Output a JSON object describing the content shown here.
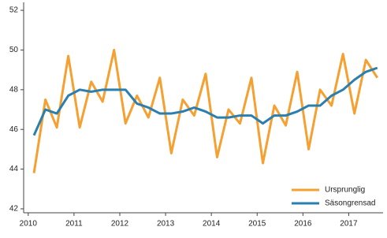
{
  "chart_data": {
    "type": "line",
    "x": [
      2010.125,
      2010.375,
      2010.625,
      2010.875,
      2011.125,
      2011.375,
      2011.625,
      2011.875,
      2012.125,
      2012.375,
      2012.625,
      2012.875,
      2013.125,
      2013.375,
      2013.625,
      2013.875,
      2014.125,
      2014.375,
      2014.625,
      2014.875,
      2015.125,
      2015.375,
      2015.625,
      2015.875,
      2016.125,
      2016.375,
      2016.625,
      2016.875,
      2017.125,
      2017.375,
      2017.625
    ],
    "series": [
      {
        "name": "Ursprunglig",
        "color": "#f5a031",
        "values": [
          43.8,
          47.5,
          46.1,
          49.7,
          46.1,
          48.4,
          47.4,
          50.0,
          46.3,
          47.7,
          46.6,
          48.6,
          44.8,
          47.5,
          46.7,
          48.8,
          44.6,
          47.0,
          46.3,
          48.6,
          44.3,
          47.2,
          46.2,
          48.9,
          45.0,
          48.0,
          47.2,
          49.8,
          46.8,
          49.5,
          48.6
        ]
      },
      {
        "name": "Säsongrensad",
        "color": "#2a7fae",
        "values": [
          45.7,
          47.0,
          46.8,
          47.7,
          48.0,
          47.9,
          48.0,
          48.0,
          48.0,
          47.3,
          47.1,
          46.8,
          46.8,
          46.9,
          47.1,
          46.9,
          46.6,
          46.6,
          46.7,
          46.7,
          46.3,
          46.7,
          46.7,
          46.9,
          47.2,
          47.2,
          47.7,
          48.0,
          48.5,
          48.9,
          49.1
        ]
      }
    ],
    "xlim": [
      2009.9,
      2017.75
    ],
    "xticks": [
      2010,
      2011,
      2012,
      2013,
      2014,
      2015,
      2016,
      2017
    ],
    "ylim": [
      41.8,
      52.4
    ],
    "yticks": [
      42,
      44,
      46,
      48,
      50,
      52
    ],
    "legend": "lower right"
  }
}
